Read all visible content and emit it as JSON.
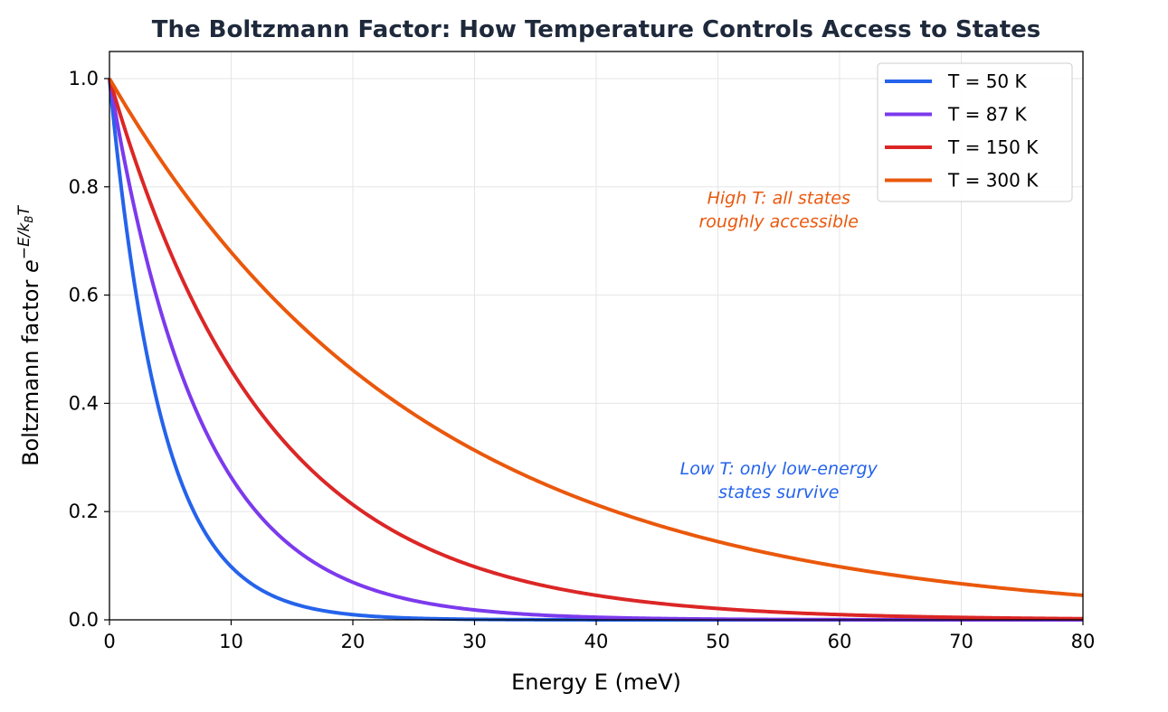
{
  "chart_data": {
    "type": "line",
    "title": "The Boltzmann Factor: How Temperature Controls Access to States",
    "xlabel": "Energy E (meV)",
    "ylabel": {
      "prefix": "Boltzmann factor ",
      "base": "e",
      "exp_main": "−E/k",
      "exp_sub": "B",
      "exp_end": "T"
    },
    "xlim": [
      0,
      80
    ],
    "ylim": [
      0,
      1.05
    ],
    "xticks": [
      "0",
      "10",
      "20",
      "30",
      "40",
      "50",
      "60",
      "70",
      "80"
    ],
    "yticks": [
      "0.0",
      "0.2",
      "0.4",
      "0.6",
      "0.8",
      "1.0"
    ],
    "grid": true,
    "legend_position": "top-right",
    "series": [
      {
        "name": "T = 50 K",
        "T": 50,
        "color": "#2563eb"
      },
      {
        "name": "T = 87 K",
        "T": 87,
        "color": "#7c3aed"
      },
      {
        "name": "T = 150 K",
        "T": 150,
        "color": "#dc2626"
      },
      {
        "name": "T = 300 K",
        "T": 300,
        "color": "#ea580c"
      }
    ],
    "annotations": [
      {
        "lines": [
          "High T: all states",
          "roughly accessible"
        ],
        "x": 55,
        "y": 0.755,
        "color": "#ea580c"
      },
      {
        "lines": [
          "Low T: only low-energy",
          "states survive"
        ],
        "x": 55,
        "y": 0.255,
        "color": "#2563eb"
      }
    ]
  }
}
